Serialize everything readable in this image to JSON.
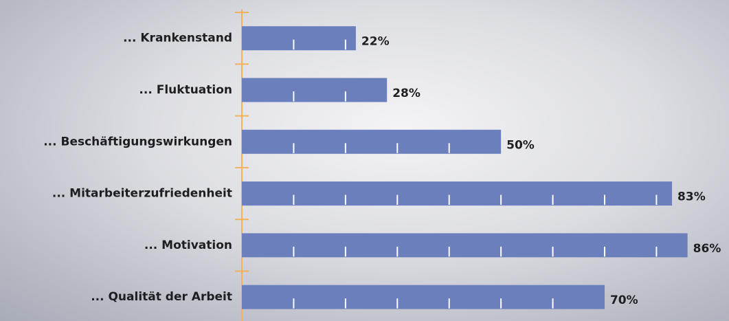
{
  "chart_data": {
    "type": "bar",
    "orientation": "horizontal",
    "categories": [
      "... Krankenstand",
      "... Fluktuation",
      "... Beschäftigungswirkungen",
      "... Mitarbeiterzufriedenheit",
      "... Motivation",
      "... Qualität der Arbeit"
    ],
    "values": [
      22,
      28,
      50,
      83,
      86,
      70
    ],
    "value_labels": [
      "22%",
      "28%",
      "50%",
      "83%",
      "86%",
      "70%"
    ],
    "color": "#6b7fbd",
    "axis_color": "#f5b25a",
    "xlim": [
      0,
      94
    ],
    "xticks": [
      10,
      20,
      30,
      40,
      50,
      60,
      70,
      80,
      90
    ]
  }
}
